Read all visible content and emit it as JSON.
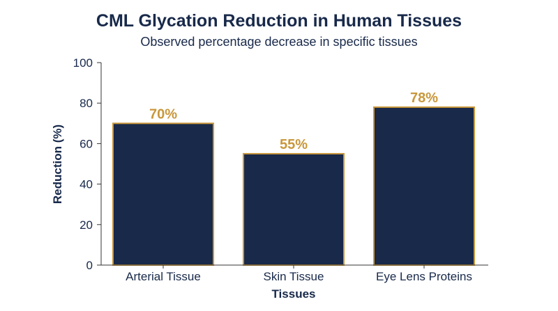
{
  "chart_data": {
    "type": "bar",
    "title": "CML Glycation Reduction in Human Tissues",
    "subtitle": "Observed percentage decrease in specific tissues",
    "xlabel": "Tissues",
    "ylabel": "Reduction (%)",
    "categories": [
      "Arterial Tissue",
      "Skin Tissue",
      "Eye Lens Proteins"
    ],
    "values": [
      70,
      55,
      78
    ],
    "data_labels": [
      "70%",
      "55%",
      "78%"
    ],
    "ylim": [
      0,
      100
    ],
    "yticks": [
      0,
      20,
      40,
      60,
      80,
      100
    ],
    "grid": false,
    "colors": {
      "bar_fill": "#18294a",
      "bar_stroke": "#c9973b",
      "data_label": "#c9973b",
      "text": "#18294a",
      "axis": "#333333"
    }
  }
}
